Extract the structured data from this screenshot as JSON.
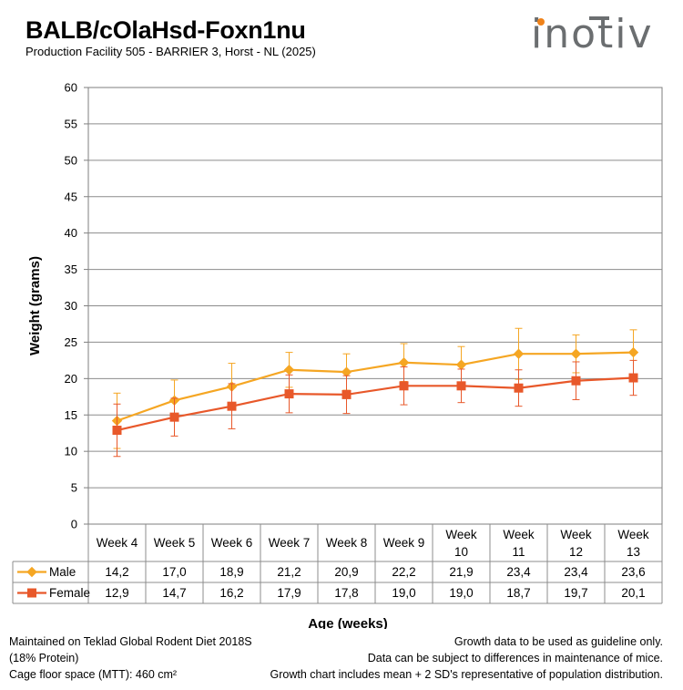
{
  "header": {
    "title": "BALB/cOlaHsd-Foxn1nu",
    "subtitle": "Production Facility 505 - BARRIER 3, Horst - NL (2025)",
    "logo_text": "inotiv",
    "logo_colors": {
      "text": "#6b6e70",
      "dot": "#f0831a"
    }
  },
  "chart_data": {
    "type": "line",
    "title": "",
    "xlabel": "Age (weeks)",
    "ylabel": "Weight (grams)",
    "ylim": [
      0,
      60
    ],
    "yticks": [
      0,
      5,
      10,
      15,
      20,
      25,
      30,
      35,
      40,
      45,
      50,
      55,
      60
    ],
    "grid": true,
    "categories": [
      [
        "Week 4"
      ],
      [
        "Week 5"
      ],
      [
        "Week 6"
      ],
      [
        "Week 7"
      ],
      [
        "Week 8"
      ],
      [
        "Week 9"
      ],
      [
        "Week",
        "10"
      ],
      [
        "Week",
        "11"
      ],
      [
        "Week",
        "12"
      ],
      [
        "Week",
        "13"
      ]
    ],
    "series": [
      {
        "name": "Male",
        "color": "#f5a623",
        "marker": "diamond",
        "values": [
          14.2,
          17.0,
          18.9,
          21.2,
          20.9,
          22.2,
          21.9,
          23.4,
          23.4,
          23.6
        ],
        "labels": [
          "14,2",
          "17,0",
          "18,9",
          "21,2",
          "20,9",
          "22,2",
          "21,9",
          "23,4",
          "23,4",
          "23,6"
        ],
        "error_upper": [
          18.0,
          19.8,
          22.1,
          23.6,
          23.4,
          24.8,
          24.4,
          26.9,
          26.0,
          26.7
        ],
        "error_lower": [
          10.4,
          14.2,
          15.7,
          18.8,
          18.4,
          19.6,
          19.4,
          19.9,
          20.8,
          20.5
        ]
      },
      {
        "name": "Female",
        "color": "#e8582a",
        "marker": "square",
        "values": [
          12.9,
          14.7,
          16.2,
          17.9,
          17.8,
          19.0,
          19.0,
          18.7,
          19.7,
          20.1
        ],
        "labels": [
          "12,9",
          "14,7",
          "16,2",
          "17,9",
          "17,8",
          "19,0",
          "19,0",
          "18,7",
          "19,7",
          "20,1"
        ],
        "error_upper": [
          16.5,
          17.3,
          19.3,
          20.5,
          20.4,
          21.6,
          21.3,
          21.2,
          22.3,
          22.5
        ],
        "error_lower": [
          9.3,
          12.1,
          13.1,
          15.3,
          15.2,
          16.4,
          16.7,
          16.2,
          17.1,
          17.7
        ]
      }
    ]
  },
  "footer": {
    "left": [
      "Maintained on Teklad Global Rodent Diet 2018S",
      "(18% Protein)",
      "Cage floor space (MTT): 460 cm²"
    ],
    "right": [
      "Growth data to be used as guideline only.",
      "Data can be subject to differences in maintenance of mice.",
      "Growth chart includes mean + 2 SD's representative of population distribution."
    ]
  }
}
